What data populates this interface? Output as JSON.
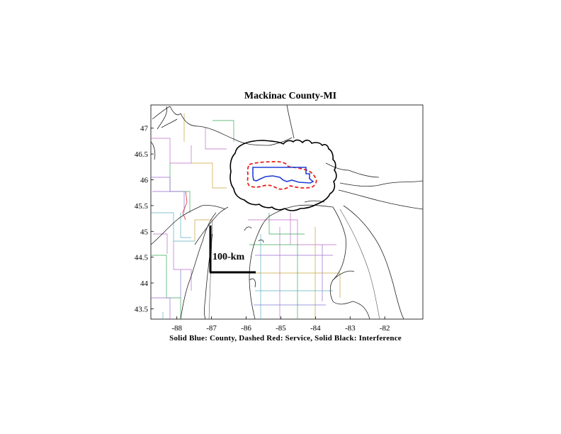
{
  "figure": {
    "title": "Mackinac County-MI",
    "caption": "Solid Blue: County, Dashed Red: Service, Solid Black: Interference",
    "scale_label": "100-km"
  },
  "chart_data": {
    "type": "map",
    "title": "Mackinac County-MI",
    "x_ticks": [
      "-88",
      "-87",
      "-86",
      "-85",
      "-84",
      "-83",
      "-82"
    ],
    "y_ticks": [
      "47",
      "46.5",
      "46",
      "45.5",
      "45",
      "44.5",
      "44",
      "43.5"
    ],
    "xlim": [
      -88.75,
      -80.9
    ],
    "ylim": [
      43.3,
      47.45
    ],
    "grid": false,
    "legend": "caption-below",
    "series": [
      {
        "name": "County",
        "style": "solid",
        "color": "#1f3fd6"
      },
      {
        "name": "Service",
        "style": "dashed",
        "color": "#e8231c"
      },
      {
        "name": "Interference",
        "style": "solid",
        "color": "#000000"
      }
    ]
  },
  "colors": {
    "county": "#1f3fd6",
    "service": "#e8231c",
    "interference": "#000000",
    "coast": "#222222",
    "county_lines": [
      "#c06ac8",
      "#3aa85a",
      "#c8a23a",
      "#5ab0c0",
      "#9a6ad0",
      "#7a7ad0"
    ]
  }
}
